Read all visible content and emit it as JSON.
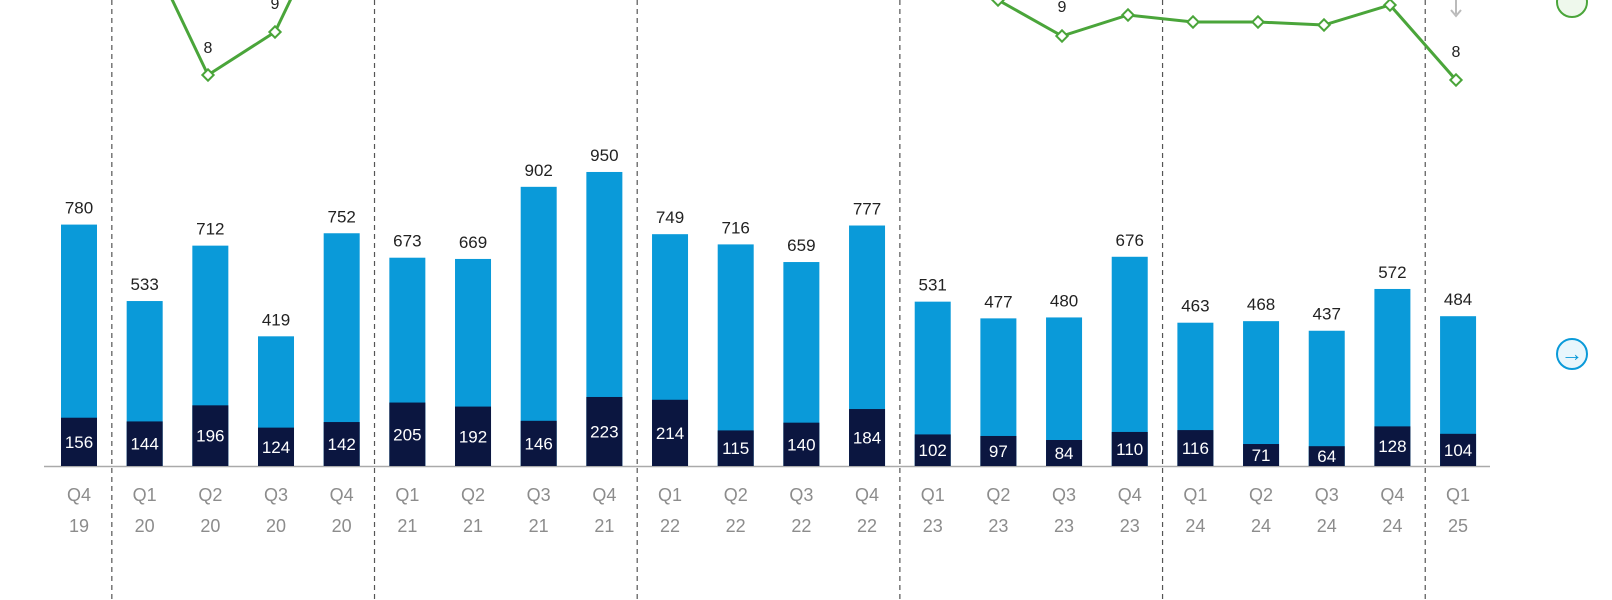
{
  "colors": {
    "total_bar": "#0a9ad9",
    "segment_bar": "#0b1640",
    "line": "#4aa53a",
    "separator": "#555555",
    "axis": "#aaaaaa",
    "tick_text": "#8c8c8c",
    "right_arrow": "#0a9ad9",
    "right_icon_green": "#4aa53a"
  },
  "icons": {
    "arrow_right": "→"
  },
  "chart_data": {
    "type": "bar",
    "stacked": true,
    "categories": [
      {
        "quarter": "Q4",
        "year": "19"
      },
      {
        "quarter": "Q1",
        "year": "20"
      },
      {
        "quarter": "Q2",
        "year": "20"
      },
      {
        "quarter": "Q3",
        "year": "20"
      },
      {
        "quarter": "Q4",
        "year": "20"
      },
      {
        "quarter": "Q1",
        "year": "21"
      },
      {
        "quarter": "Q2",
        "year": "21"
      },
      {
        "quarter": "Q3",
        "year": "21"
      },
      {
        "quarter": "Q4",
        "year": "21"
      },
      {
        "quarter": "Q1",
        "year": "22"
      },
      {
        "quarter": "Q2",
        "year": "22"
      },
      {
        "quarter": "Q3",
        "year": "22"
      },
      {
        "quarter": "Q4",
        "year": "22"
      },
      {
        "quarter": "Q1",
        "year": "23"
      },
      {
        "quarter": "Q2",
        "year": "23"
      },
      {
        "quarter": "Q3",
        "year": "23"
      },
      {
        "quarter": "Q4",
        "year": "23"
      },
      {
        "quarter": "Q1",
        "year": "24"
      },
      {
        "quarter": "Q2",
        "year": "24"
      },
      {
        "quarter": "Q3",
        "year": "24"
      },
      {
        "quarter": "Q4",
        "year": "24"
      },
      {
        "quarter": "Q1",
        "year": "25"
      }
    ],
    "series": [
      {
        "values": [
          780,
          533,
          712,
          419,
          752,
          673,
          669,
          902,
          950,
          749,
          716,
          659,
          777,
          531,
          477,
          480,
          676,
          463,
          468,
          437,
          572,
          484
        ]
      },
      {
        "values": [
          156,
          144,
          196,
          124,
          142,
          205,
          192,
          146,
          223,
          214,
          115,
          140,
          184,
          102,
          97,
          84,
          110,
          116,
          71,
          64,
          128,
          104
        ]
      }
    ],
    "year_separators_after_index": [
      0,
      4,
      8,
      12,
      16,
      20
    ],
    "ylim": [
      0,
      1200
    ],
    "line_series": {
      "values": [
        null,
        null,
        8,
        9,
        null,
        null,
        null,
        null,
        null,
        null,
        null,
        null,
        null,
        null,
        null,
        9,
        null,
        null,
        null,
        null,
        null,
        8
      ],
      "labels": [
        "",
        "",
        "8",
        "9",
        "",
        "",
        "",
        "",
        "",
        "",
        "",
        "",
        "",
        "",
        "",
        "9",
        "",
        "",
        "",
        "",
        "",
        "8"
      ]
    },
    "grid": false,
    "legend": "none"
  }
}
